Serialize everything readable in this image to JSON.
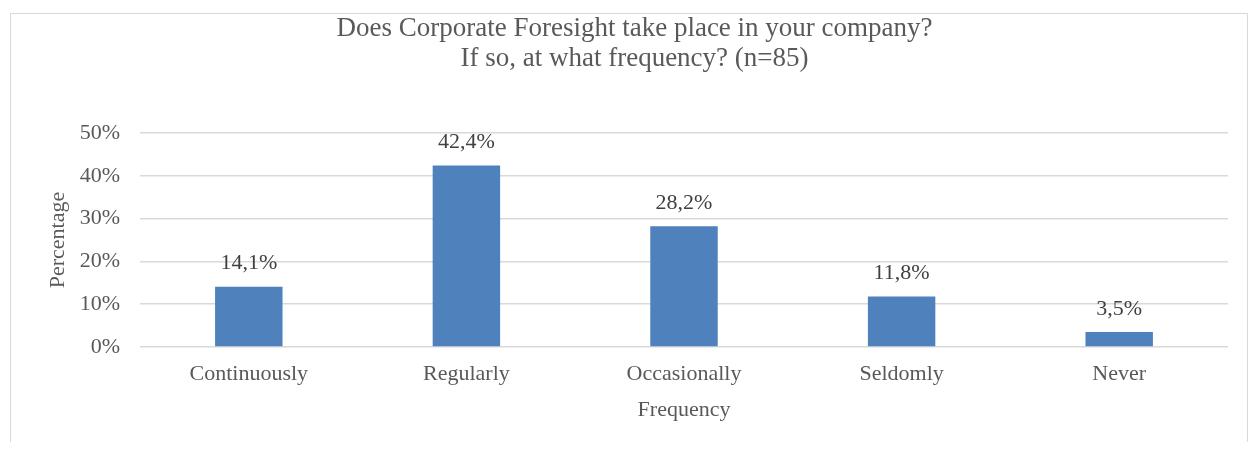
{
  "chart_data": {
    "type": "bar",
    "title": "Does Corporate Foresight take place in your company?\nIf so, at what frequency? (n=85)",
    "xlabel": "Frequency",
    "ylabel": "Percentage",
    "categories": [
      "Continuously",
      "Regularly",
      "Occasionally",
      "Seldomly",
      "Never"
    ],
    "values": [
      14.1,
      42.4,
      28.2,
      11.8,
      3.5
    ],
    "color": "#4f81bd",
    "value_labels": [
      "14,1%",
      "42,4%",
      "28,2%",
      "11,8%",
      "3,5%"
    ],
    "ylim": [
      0,
      50
    ],
    "yticks": [
      {
        "value": 0,
        "label": "0%"
      },
      {
        "value": 10,
        "label": "10%"
      },
      {
        "value": 20,
        "label": "20%"
      },
      {
        "value": 30,
        "label": "30%"
      },
      {
        "value": 40,
        "label": "40%"
      },
      {
        "value": 50,
        "label": "50%"
      }
    ],
    "grid": "y"
  }
}
